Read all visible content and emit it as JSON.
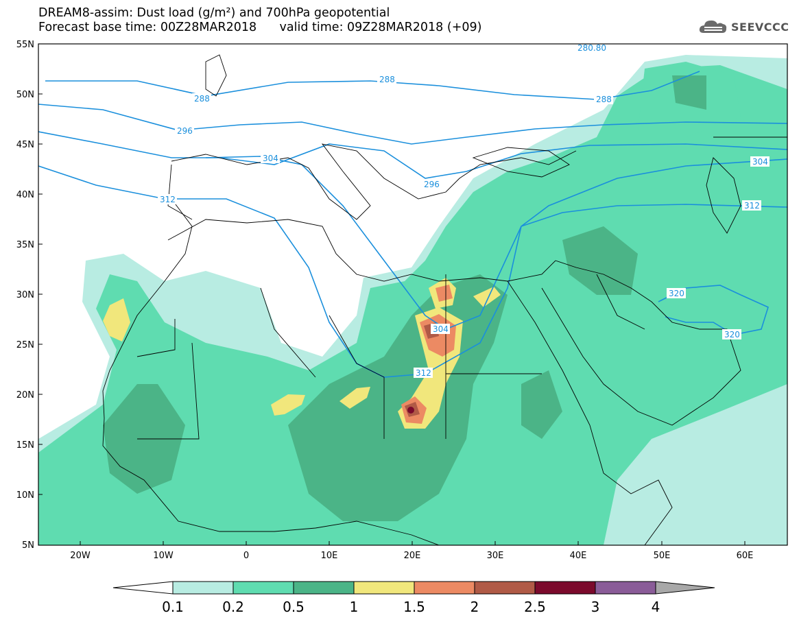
{
  "header": {
    "line1": "DREAM8-assim: Dust load (g/m²) and 700hPa geopotential",
    "line2": "Forecast base time: 00Z28MAR2018      valid time: 09Z28MAR2018 (+09)"
  },
  "logo": {
    "text": "SEEVCCC",
    "icon": "cloud-icon"
  },
  "map": {
    "lon_range": [
      -25,
      65
    ],
    "lat_range": [
      5,
      55
    ],
    "lat_ticks": [
      "55N",
      "50N",
      "45N",
      "40N",
      "35N",
      "30N",
      "25N",
      "20N",
      "15N",
      "10N",
      "5N"
    ],
    "lon_ticks": [
      "20W",
      "10W",
      "0",
      "10E",
      "20E",
      "30E",
      "40E",
      "50E",
      "60E"
    ],
    "contour_labels": [
      "288",
      "288",
      "288",
      "296",
      "296",
      "304",
      "304",
      "304",
      "312",
      "312",
      "312",
      "320",
      "320",
      "280.80"
    ],
    "colors": {
      "contour": "#1a8fdc",
      "border": "#000000"
    }
  },
  "colorbar": {
    "labels": [
      "0.1",
      "0.2",
      "0.5",
      "1",
      "1.5",
      "2",
      "2.5",
      "3",
      "4"
    ],
    "colors": [
      "#b8ece2",
      "#5fdcb0",
      "#4bb487",
      "#f1e77c",
      "#ec8a63",
      "#b05a46",
      "#7b0a2c",
      "#8a5c98",
      "#a8a8a8"
    ]
  }
}
